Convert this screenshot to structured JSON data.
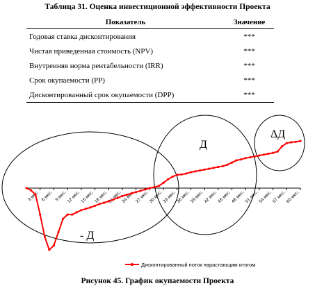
{
  "table": {
    "title": "Таблица 31. Оценка инвестиционной эффективности Проекта",
    "headers": [
      "Показатель",
      "Значение"
    ],
    "rows": [
      {
        "label": "Годовая ставка дисконтирования",
        "value": "***"
      },
      {
        "label": "Чистая приведенная стоимость (NPV)",
        "value": "***"
      },
      {
        "label": "Внутренняя норма рентабельности (IRR)",
        "value": "***"
      },
      {
        "label": "Срок окупаемости (PP)",
        "value": "***"
      },
      {
        "label": "Дисконтированный срок окупаемости (DPP)",
        "value": "***"
      }
    ]
  },
  "chart_data": {
    "type": "line",
    "title": "",
    "xlabel": "",
    "ylabel": "",
    "x_tick_labels": [
      "3 мес.",
      "6 мес.",
      "9 мес.",
      "12 мес.",
      "15 мес.",
      "18 мес.",
      "21 мес.",
      "24 мес.",
      "27 мес.",
      "30 мес.",
      "33 мес.",
      "36 мес.",
      "39 мес.",
      "42 мес.",
      "45 мес.",
      "48 мес.",
      "51 мес.",
      "54 мес.",
      "57 мес.",
      "60 мес."
    ],
    "legend": "bottom",
    "series": [
      {
        "name": "Дисконтированный поток нарастающим итогом",
        "color": "#ff0000",
        "x": [
          0,
          1,
          2,
          3,
          4,
          5,
          6,
          7,
          8,
          9,
          10,
          11,
          12,
          13,
          14,
          15,
          16,
          17,
          18,
          19,
          20,
          21,
          22,
          23,
          24,
          25,
          26,
          27,
          28,
          29,
          30,
          31,
          32,
          33,
          34,
          35,
          36,
          37,
          38,
          39,
          40,
          41,
          42,
          43,
          44,
          45,
          46,
          47,
          48,
          49,
          50,
          51,
          52,
          53,
          54,
          55,
          56,
          57,
          58,
          59,
          60
        ],
        "y": [
          0,
          -0.5,
          -1.5,
          -6,
          -11,
          -14,
          -13,
          -10,
          -7,
          -6,
          -6,
          -5.5,
          -5,
          -4.7,
          -4.4,
          -4,
          -3.6,
          -3.3,
          -3,
          -2.6,
          -2.2,
          -1.8,
          -1.5,
          -1.2,
          -0.9,
          -0.6,
          -0.3,
          0,
          0.2,
          0.5,
          1.2,
          2,
          2.6,
          3,
          3.1,
          3.3,
          3.6,
          3.8,
          4,
          4.2,
          4.4,
          4.6,
          4.8,
          5,
          5.3,
          5.8,
          6.3,
          6.5,
          6.8,
          7,
          7.2,
          7.4,
          7.6,
          7.8,
          8,
          8.3,
          9.5,
          10.2,
          10.4,
          10.5,
          10.7
        ]
      }
    ],
    "annotations": [
      {
        "text": "- Д"
      },
      {
        "text": "Д"
      },
      {
        "text": "ΔД"
      }
    ]
  },
  "caption": "Рисунок 45. График окупаемости Проекта"
}
